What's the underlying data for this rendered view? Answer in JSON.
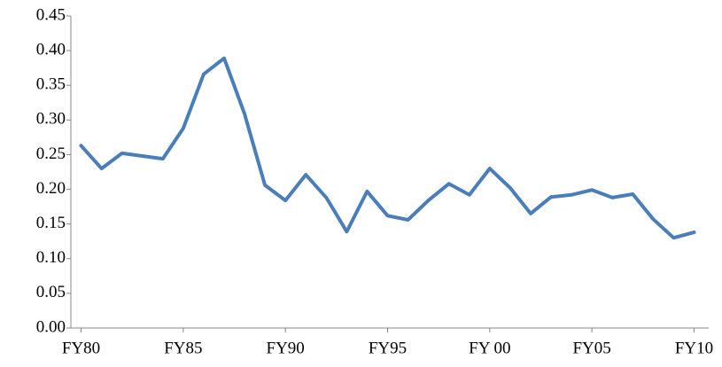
{
  "chart_data": {
    "type": "line",
    "categories": [
      "FY80",
      null,
      null,
      null,
      null,
      "FY85",
      null,
      null,
      null,
      null,
      "FY90",
      null,
      null,
      null,
      null,
      "FY95",
      null,
      null,
      null,
      null,
      "FY 00",
      null,
      null,
      null,
      null,
      "FY05",
      null,
      null,
      null,
      null,
      "FY10"
    ],
    "series": [
      {
        "color": "#4a7ebb",
        "values": [
          0.263,
          0.23,
          0.252,
          0.248,
          0.244,
          0.288,
          0.366,
          0.389,
          0.309,
          0.206,
          0.184,
          0.221,
          0.188,
          0.139,
          0.197,
          0.162,
          0.156,
          0.184,
          0.208,
          0.192,
          0.23,
          0.202,
          0.165,
          0.189,
          0.192,
          0.199,
          0.188,
          0.193,
          0.157,
          0.13,
          0.138
        ]
      }
    ],
    "ylim": [
      0,
      0.45
    ],
    "yticks": [
      {
        "value": 0,
        "label": "0.00"
      },
      {
        "value": 0.05,
        "label": "0.05"
      },
      {
        "value": 0.1,
        "label": "0.10"
      },
      {
        "value": 0.15,
        "label": "0.15"
      },
      {
        "value": 0.2,
        "label": "0.20"
      },
      {
        "value": 0.25,
        "label": "0.25"
      },
      {
        "value": 0.3,
        "label": "0.30"
      },
      {
        "value": 0.35,
        "label": "0.35"
      },
      {
        "value": 0.4,
        "label": "0.40"
      },
      {
        "value": 0.45,
        "label": "0.45"
      }
    ],
    "grid": false
  }
}
